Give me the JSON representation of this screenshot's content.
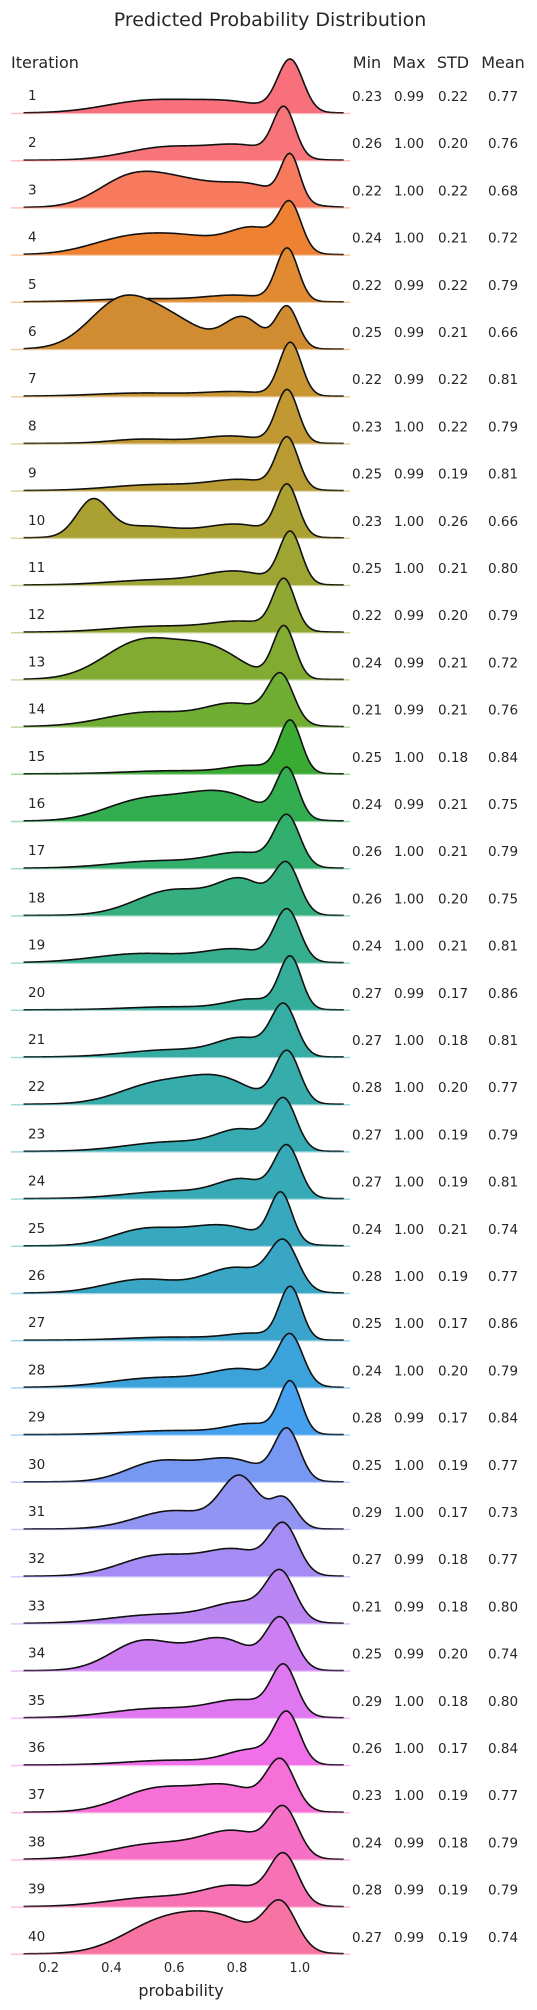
{
  "chart_data": {
    "type": "ridgeline",
    "title": "Predicted Probability Distribution",
    "xlabel": "probability",
    "row_header": "Iteration",
    "stat_headers": [
      "Min",
      "Max",
      "STD",
      "Mean"
    ],
    "xticks": [
      "0.2",
      "0.4",
      "0.6",
      "0.8",
      "1.0"
    ],
    "xtick_values": [
      0.2,
      0.4,
      0.6,
      0.8,
      1.0
    ],
    "xlim": [
      0.08,
      1.16
    ],
    "rows": [
      {
        "label": "1",
        "stats": [
          "0.23",
          "0.99",
          "0.22",
          "0.77"
        ],
        "color": "#f7707c",
        "peaks": [
          [
            0.97,
            0.04,
            1.0
          ],
          [
            0.52,
            0.14,
            0.24
          ],
          [
            0.78,
            0.12,
            0.2
          ]
        ]
      },
      {
        "label": "2",
        "stats": [
          "0.26",
          "1.00",
          "0.20",
          "0.76"
        ],
        "color": "#f7757a",
        "peaks": [
          [
            0.95,
            0.035,
            0.95
          ],
          [
            0.58,
            0.13,
            0.26
          ],
          [
            0.82,
            0.1,
            0.26
          ]
        ]
      },
      {
        "label": "3",
        "stats": [
          "0.22",
          "1.00",
          "0.22",
          "0.68"
        ],
        "color": "#f77a5e",
        "peaks": [
          [
            0.97,
            0.03,
            1.0
          ],
          [
            0.45,
            0.1,
            0.55
          ],
          [
            0.62,
            0.12,
            0.55
          ],
          [
            0.85,
            0.1,
            0.45
          ]
        ]
      },
      {
        "label": "4",
        "stats": [
          "0.24",
          "1.00",
          "0.21",
          "0.72"
        ],
        "color": "#ef8232",
        "peaks": [
          [
            0.97,
            0.035,
            1.0
          ],
          [
            0.45,
            0.12,
            0.35
          ],
          [
            0.65,
            0.12,
            0.35
          ],
          [
            0.86,
            0.08,
            0.55
          ]
        ]
      },
      {
        "label": "5",
        "stats": [
          "0.22",
          "0.99",
          "0.22",
          "0.79"
        ],
        "color": "#e08a32",
        "peaks": [
          [
            0.96,
            0.035,
            1.0
          ],
          [
            0.5,
            0.15,
            0.06
          ],
          [
            0.8,
            0.1,
            0.12
          ]
        ]
      },
      {
        "label": "6",
        "stats": [
          "0.25",
          "0.99",
          "0.21",
          "0.66"
        ],
        "color": "#d18c32",
        "peaks": [
          [
            0.96,
            0.035,
            0.75
          ],
          [
            0.43,
            0.1,
            0.85
          ],
          [
            0.6,
            0.1,
            0.45
          ],
          [
            0.82,
            0.06,
            0.55
          ]
        ]
      },
      {
        "label": "7",
        "stats": [
          "0.22",
          "0.99",
          "0.22",
          "0.81"
        ],
        "color": "#c99432",
        "peaks": [
          [
            0.97,
            0.035,
            1.0
          ],
          [
            0.5,
            0.15,
            0.06
          ],
          [
            0.8,
            0.1,
            0.08
          ]
        ]
      },
      {
        "label": "8",
        "stats": [
          "0.23",
          "1.00",
          "0.22",
          "0.79"
        ],
        "color": "#c29832",
        "peaks": [
          [
            0.96,
            0.035,
            1.0
          ],
          [
            0.5,
            0.1,
            0.08
          ],
          [
            0.78,
            0.1,
            0.14
          ]
        ]
      },
      {
        "label": "9",
        "stats": [
          "0.25",
          "0.99",
          "0.19",
          "0.81"
        ],
        "color": "#b89b32",
        "peaks": [
          [
            0.96,
            0.035,
            1.0
          ],
          [
            0.55,
            0.15,
            0.12
          ],
          [
            0.82,
            0.1,
            0.2
          ]
        ]
      },
      {
        "label": "10",
        "stats": [
          "0.23",
          "1.00",
          "0.26",
          "0.66"
        ],
        "color": "#aba032",
        "peaks": [
          [
            0.96,
            0.035,
            0.95
          ],
          [
            0.34,
            0.05,
            0.65
          ],
          [
            0.5,
            0.12,
            0.22
          ],
          [
            0.8,
            0.1,
            0.25
          ]
        ]
      },
      {
        "label": "11",
        "stats": [
          "0.25",
          "1.00",
          "0.21",
          "0.80"
        ],
        "color": "#9ea532",
        "peaks": [
          [
            0.97,
            0.035,
            1.0
          ],
          [
            0.55,
            0.15,
            0.1
          ],
          [
            0.8,
            0.1,
            0.25
          ]
        ]
      },
      {
        "label": "12",
        "stats": [
          "0.22",
          "0.99",
          "0.20",
          "0.79"
        ],
        "color": "#8fa832",
        "peaks": [
          [
            0.95,
            0.035,
            1.0
          ],
          [
            0.55,
            0.15,
            0.12
          ],
          [
            0.82,
            0.1,
            0.2
          ]
        ]
      },
      {
        "label": "13",
        "stats": [
          "0.24",
          "0.99",
          "0.21",
          "0.72"
        ],
        "color": "#82ab32",
        "peaks": [
          [
            0.95,
            0.035,
            0.95
          ],
          [
            0.5,
            0.12,
            0.7
          ],
          [
            0.72,
            0.1,
            0.5
          ]
        ]
      },
      {
        "label": "14",
        "stats": [
          "0.21",
          "0.99",
          "0.21",
          "0.76"
        ],
        "color": "#6fae32",
        "peaks": [
          [
            0.94,
            0.04,
            0.95
          ],
          [
            0.52,
            0.14,
            0.3
          ],
          [
            0.8,
            0.1,
            0.45
          ]
        ]
      },
      {
        "label": "15",
        "stats": [
          "0.25",
          "1.00",
          "0.18",
          "0.84"
        ],
        "color": "#3aab32",
        "peaks": [
          [
            0.97,
            0.035,
            1.0
          ],
          [
            0.6,
            0.15,
            0.06
          ],
          [
            0.85,
            0.08,
            0.15
          ]
        ]
      },
      {
        "label": "16",
        "stats": [
          "0.24",
          "0.99",
          "0.21",
          "0.75"
        ],
        "color": "#32ad50",
        "peaks": [
          [
            0.96,
            0.035,
            0.95
          ],
          [
            0.5,
            0.12,
            0.4
          ],
          [
            0.75,
            0.12,
            0.55
          ]
        ]
      },
      {
        "label": "17",
        "stats": [
          "0.26",
          "1.00",
          "0.21",
          "0.79"
        ],
        "color": "#32ae6d",
        "peaks": [
          [
            0.96,
            0.04,
            1.0
          ],
          [
            0.55,
            0.15,
            0.15
          ],
          [
            0.82,
            0.1,
            0.3
          ]
        ]
      },
      {
        "label": "18",
        "stats": [
          "0.26",
          "1.00",
          "0.20",
          "0.75"
        ],
        "color": "#35af80",
        "peaks": [
          [
            0.96,
            0.04,
            1.0
          ],
          [
            0.6,
            0.12,
            0.55
          ],
          [
            0.82,
            0.08,
            0.7
          ]
        ]
      },
      {
        "label": "19",
        "stats": [
          "0.24",
          "1.00",
          "0.21",
          "0.81"
        ],
        "color": "#35af8e",
        "peaks": [
          [
            0.96,
            0.04,
            1.0
          ],
          [
            0.5,
            0.15,
            0.18
          ],
          [
            0.8,
            0.1,
            0.25
          ]
        ]
      },
      {
        "label": "20",
        "stats": [
          "0.27",
          "0.99",
          "0.17",
          "0.86"
        ],
        "color": "#35ad9b",
        "peaks": [
          [
            0.97,
            0.035,
            1.0
          ],
          [
            0.6,
            0.15,
            0.06
          ],
          [
            0.85,
            0.08,
            0.2
          ]
        ]
      },
      {
        "label": "21",
        "stats": [
          "0.27",
          "1.00",
          "0.18",
          "0.81"
        ],
        "color": "#35aca4",
        "peaks": [
          [
            0.95,
            0.04,
            1.0
          ],
          [
            0.6,
            0.15,
            0.15
          ],
          [
            0.82,
            0.08,
            0.35
          ]
        ]
      },
      {
        "label": "22",
        "stats": [
          "0.28",
          "1.00",
          "0.20",
          "0.77"
        ],
        "color": "#36acab",
        "peaks": [
          [
            0.96,
            0.04,
            1.0
          ],
          [
            0.55,
            0.12,
            0.4
          ],
          [
            0.75,
            0.1,
            0.45
          ]
        ]
      },
      {
        "label": "23",
        "stats": [
          "0.27",
          "1.00",
          "0.19",
          "0.79"
        ],
        "color": "#36abb2",
        "peaks": [
          [
            0.95,
            0.04,
            1.0
          ],
          [
            0.6,
            0.15,
            0.2
          ],
          [
            0.82,
            0.08,
            0.4
          ]
        ]
      },
      {
        "label": "24",
        "stats": [
          "0.27",
          "1.00",
          "0.19",
          "0.81"
        ],
        "color": "#37aab8",
        "peaks": [
          [
            0.96,
            0.04,
            1.0
          ],
          [
            0.6,
            0.15,
            0.15
          ],
          [
            0.82,
            0.08,
            0.35
          ]
        ]
      },
      {
        "label": "25",
        "stats": [
          "0.24",
          "1.00",
          "0.21",
          "0.74"
        ],
        "color": "#38a8be",
        "peaks": [
          [
            0.94,
            0.035,
            0.95
          ],
          [
            0.5,
            0.1,
            0.3
          ],
          [
            0.75,
            0.12,
            0.4
          ]
        ]
      },
      {
        "label": "26",
        "stats": [
          "0.28",
          "1.00",
          "0.19",
          "0.77"
        ],
        "color": "#38a6c4",
        "peaks": [
          [
            0.95,
            0.045,
            1.0
          ],
          [
            0.5,
            0.12,
            0.3
          ],
          [
            0.8,
            0.1,
            0.55
          ]
        ]
      },
      {
        "label": "27",
        "stats": [
          "0.25",
          "1.00",
          "0.17",
          "0.86"
        ],
        "color": "#3aa4cc",
        "peaks": [
          [
            0.97,
            0.035,
            1.0
          ],
          [
            0.6,
            0.15,
            0.06
          ],
          [
            0.85,
            0.08,
            0.12
          ]
        ]
      },
      {
        "label": "28",
        "stats": [
          "0.24",
          "1.00",
          "0.20",
          "0.79"
        ],
        "color": "#3ca2da",
        "peaks": [
          [
            0.97,
            0.04,
            1.0
          ],
          [
            0.55,
            0.15,
            0.2
          ],
          [
            0.82,
            0.1,
            0.35
          ]
        ]
      },
      {
        "label": "29",
        "stats": [
          "0.28",
          "0.99",
          "0.17",
          "0.84"
        ],
        "color": "#45a0ee",
        "peaks": [
          [
            0.97,
            0.035,
            1.0
          ],
          [
            0.6,
            0.15,
            0.08
          ],
          [
            0.85,
            0.08,
            0.2
          ]
        ]
      },
      {
        "label": "30",
        "stats": [
          "0.25",
          "1.00",
          "0.19",
          "0.77"
        ],
        "color": "#7698f2",
        "peaks": [
          [
            0.96,
            0.04,
            1.0
          ],
          [
            0.55,
            0.1,
            0.4
          ],
          [
            0.78,
            0.1,
            0.45
          ]
        ]
      },
      {
        "label": "31",
        "stats": [
          "0.29",
          "1.00",
          "0.17",
          "0.73"
        ],
        "color": "#9294f4",
        "peaks": [
          [
            0.81,
            0.06,
            0.95
          ],
          [
            0.6,
            0.12,
            0.35
          ],
          [
            0.95,
            0.04,
            0.55
          ]
        ]
      },
      {
        "label": "32",
        "stats": [
          "0.27",
          "0.99",
          "0.18",
          "0.77"
        ],
        "color": "#a58cf4",
        "peaks": [
          [
            0.95,
            0.045,
            1.0
          ],
          [
            0.55,
            0.12,
            0.45
          ],
          [
            0.8,
            0.1,
            0.55
          ]
        ]
      },
      {
        "label": "33",
        "stats": [
          "0.21",
          "0.99",
          "0.18",
          "0.80"
        ],
        "color": "#b986f4",
        "peaks": [
          [
            0.94,
            0.045,
            1.0
          ],
          [
            0.55,
            0.15,
            0.2
          ],
          [
            0.82,
            0.1,
            0.45
          ]
        ]
      },
      {
        "label": "34",
        "stats": [
          "0.25",
          "0.99",
          "0.20",
          "0.74"
        ],
        "color": "#cc7ef2",
        "peaks": [
          [
            0.94,
            0.045,
            1.0
          ],
          [
            0.5,
            0.1,
            0.6
          ],
          [
            0.75,
            0.1,
            0.65
          ]
        ]
      },
      {
        "label": "35",
        "stats": [
          "0.29",
          "1.00",
          "0.18",
          "0.80"
        ],
        "color": "#df78f0",
        "peaks": [
          [
            0.95,
            0.04,
            1.0
          ],
          [
            0.55,
            0.15,
            0.2
          ],
          [
            0.82,
            0.1,
            0.35
          ]
        ]
      },
      {
        "label": "36",
        "stats": [
          "0.26",
          "1.00",
          "0.17",
          "0.84"
        ],
        "color": "#f070ea",
        "peaks": [
          [
            0.96,
            0.04,
            1.0
          ],
          [
            0.6,
            0.15,
            0.1
          ],
          [
            0.85,
            0.08,
            0.3
          ]
        ]
      },
      {
        "label": "37",
        "stats": [
          "0.23",
          "1.00",
          "0.19",
          "0.77"
        ],
        "color": "#f770d8",
        "peaks": [
          [
            0.94,
            0.045,
            1.0
          ],
          [
            0.55,
            0.12,
            0.5
          ],
          [
            0.78,
            0.1,
            0.5
          ]
        ]
      },
      {
        "label": "38",
        "stats": [
          "0.24",
          "0.99",
          "0.18",
          "0.79"
        ],
        "color": "#f770c8",
        "peaks": [
          [
            0.95,
            0.045,
            1.0
          ],
          [
            0.55,
            0.15,
            0.35
          ],
          [
            0.8,
            0.1,
            0.55
          ]
        ]
      },
      {
        "label": "39",
        "stats": [
          "0.28",
          "0.99",
          "0.19",
          "0.79"
        ],
        "color": "#f772b4",
        "peaks": [
          [
            0.95,
            0.045,
            1.0
          ],
          [
            0.55,
            0.15,
            0.2
          ],
          [
            0.8,
            0.1,
            0.4
          ]
        ]
      },
      {
        "label": "40",
        "stats": [
          "0.27",
          "0.99",
          "0.19",
          "0.74"
        ],
        "color": "#f774a2",
        "peaks": [
          [
            0.94,
            0.05,
            0.95
          ],
          [
            0.55,
            0.12,
            0.6
          ],
          [
            0.75,
            0.12,
            0.7
          ]
        ]
      }
    ]
  }
}
